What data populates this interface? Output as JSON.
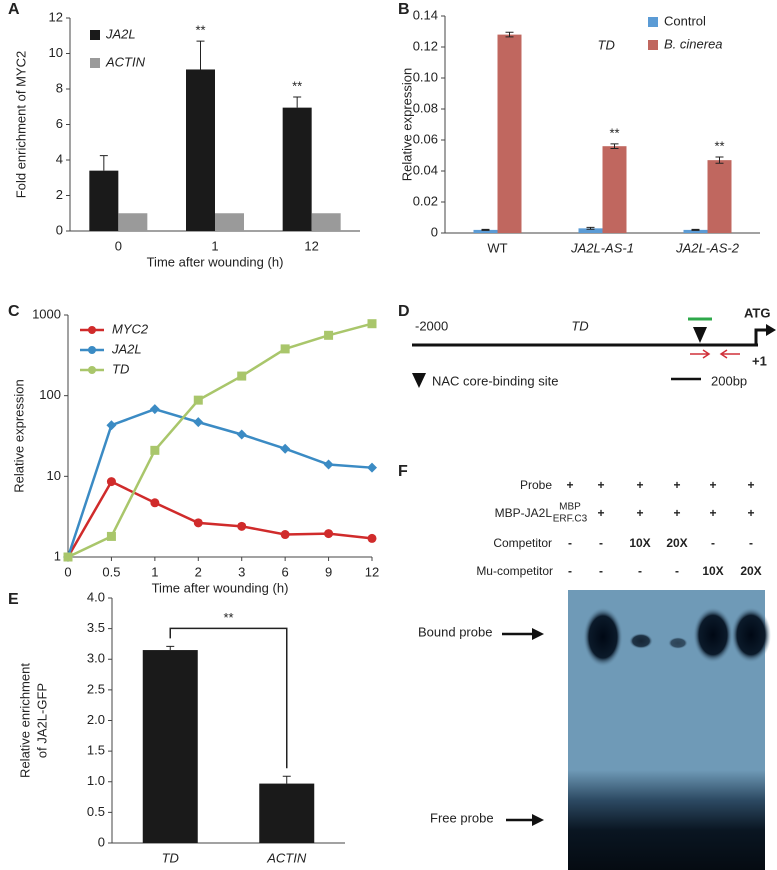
{
  "chart_data": [
    {
      "panel": "A",
      "type": "bar",
      "categories": [
        "0",
        "1",
        "12"
      ],
      "series": [
        {
          "name": "JA2L",
          "color": "#1a1a1a",
          "values": [
            3.4,
            9.1,
            6.95
          ],
          "errors": [
            0.85,
            1.6,
            0.6
          ]
        },
        {
          "name": "ACTIN",
          "color": "#9a9a9a",
          "values": [
            1,
            1,
            1
          ]
        }
      ],
      "annotations": [
        null,
        "**",
        "**"
      ],
      "legend": "upper left",
      "ylim": [
        0,
        12
      ],
      "yticks": [
        0,
        2,
        4,
        6,
        8,
        10,
        12
      ],
      "ylabel": "Fold enrichment of MYC2",
      "xlabel": "Time after wounding (h)"
    },
    {
      "panel": "B",
      "type": "bar",
      "title": "TD",
      "categories": [
        "WT",
        "JA2L-AS-1",
        "JA2L-AS-2"
      ],
      "series": [
        {
          "name": "Control",
          "color": "#5b9bd5",
          "values": [
            0.002,
            0.003,
            0.002
          ],
          "errors": [
            0.0003,
            0.0006,
            0.0003
          ]
        },
        {
          "name": "B. cinerea",
          "color": "#c0675f",
          "values": [
            0.128,
            0.056,
            0.047
          ],
          "errors": [
            0.0015,
            0.0015,
            0.002
          ]
        }
      ],
      "annotations": [
        null,
        "**",
        "**"
      ],
      "legend": "upper right",
      "ylim": [
        0,
        0.14
      ],
      "yticks": [
        0,
        0.02,
        0.04,
        0.06,
        0.08,
        {
          "value": 0.1,
          "label": "0.10"
        },
        0.12,
        0.14
      ],
      "ylabel": "Relative expression"
    },
    {
      "panel": "C",
      "type": "line",
      "categories": [
        "0",
        "0.5",
        "1",
        "2",
        "3",
        "6",
        "9",
        "12"
      ],
      "series": [
        {
          "name": "MYC2",
          "color": "#d02b2b",
          "marker": "circle",
          "values": [
            1,
            8.6,
            4.7,
            2.65,
            2.4,
            1.9,
            1.95,
            1.7
          ]
        },
        {
          "name": "JA2L",
          "color": "#3b8bc4",
          "marker": "diamond",
          "values": [
            1,
            43,
            68,
            47,
            33,
            22,
            14,
            12.8
          ]
        },
        {
          "name": "TD",
          "color": "#a9c66b",
          "marker": "square",
          "values": [
            1,
            1.8,
            21,
            88,
            175,
            380,
            560,
            780
          ]
        }
      ],
      "legend": "upper left",
      "log_scale": true,
      "ylim": [
        1,
        1000
      ],
      "yticks": [
        1,
        10,
        100,
        1000
      ],
      "ylabel": "Relative expression",
      "xlabel": "Time after wounding (h)"
    },
    {
      "panel": "E",
      "type": "bar",
      "categories": [
        "TD",
        "ACTIN"
      ],
      "series": [
        {
          "color": "#1a1a1a",
          "values": [
            3.15,
            0.97
          ],
          "errors": [
            0.06,
            0.12
          ]
        }
      ],
      "bracket_label": "**",
      "ylim": [
        0,
        4
      ],
      "yticks": [
        0,
        0.5,
        {
          "value": 1,
          "label": "1.0"
        },
        1.5,
        {
          "value": 2,
          "label": "2.0"
        },
        2.5,
        {
          "value": 3,
          "label": "3.0"
        },
        3.5,
        {
          "value": 4,
          "label": "4.0"
        }
      ],
      "ylabel": [
        "Relative enrichment",
        "of JA2L-GFP"
      ]
    }
  ],
  "panel_d": {
    "panel": "D",
    "start": "-2000",
    "gene": "TD",
    "atg": "ATG",
    "tss": "+1",
    "legend": "NAC core-binding site",
    "scale": "200bp"
  },
  "panel_f": {
    "panel": "F",
    "rows": [
      {
        "label": "Probe",
        "cells": [
          "+",
          "+",
          "+",
          "+",
          "+",
          "+"
        ]
      },
      {
        "label": "MBP-JA2L",
        "cells": [
          [
            "MBP",
            "ERF.C3"
          ],
          "+",
          "+",
          "+",
          "+",
          "+"
        ]
      },
      {
        "label": "Competitor",
        "cells": [
          "-",
          "-",
          "10X",
          "20X",
          "-",
          "-"
        ]
      },
      {
        "label": "Mu-competitor",
        "cells": [
          "-",
          "-",
          "-",
          "-",
          "10X",
          "20X"
        ]
      }
    ],
    "bound": "Bound probe",
    "free": "Free probe"
  }
}
